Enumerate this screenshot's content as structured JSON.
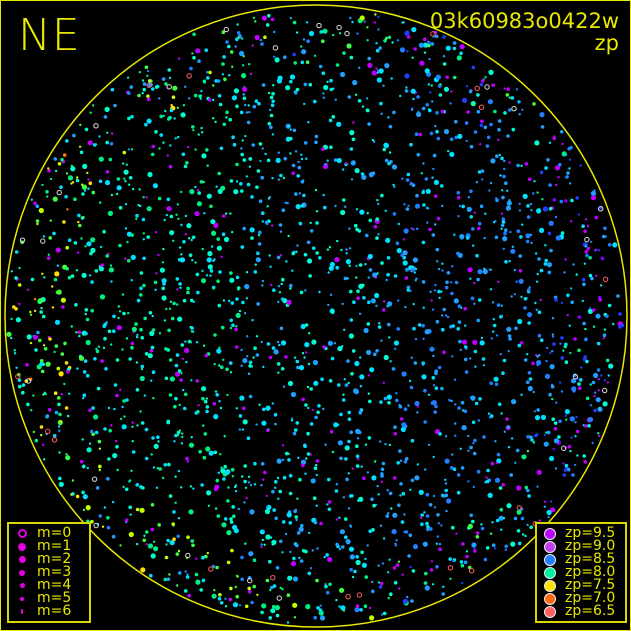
{
  "header": {
    "direction": "NE",
    "image_id": "03k60983o0422w",
    "mode": "zp"
  },
  "chart_data": {
    "type": "scatter",
    "title": "03k60983o0422w",
    "subtitle": "zp",
    "projection": "all-sky circle",
    "colors": {
      "frame": "#e8e800",
      "background": "#000000"
    },
    "magnitude_legend": [
      {
        "label": "m=0",
        "style": "ring"
      },
      {
        "label": "m=1"
      },
      {
        "label": "m=2"
      },
      {
        "label": "m=3"
      },
      {
        "label": "m=4"
      },
      {
        "label": "m=5"
      },
      {
        "label": "m=6"
      }
    ],
    "zp_legend": [
      {
        "label": "zp=9.5",
        "color": "#c000ff"
      },
      {
        "label": "zp=9.0",
        "color": "#c040f0"
      },
      {
        "label": "zp=8.5",
        "color": "#2080ff"
      },
      {
        "label": "zp=8.0",
        "color": "#00f0a0"
      },
      {
        "label": "zp=7.5",
        "color": "#ffe000"
      },
      {
        "label": "zp=7.0",
        "color": "#ff6a10"
      },
      {
        "label": "zp=6.5",
        "color": "#ff6060"
      }
    ]
  }
}
